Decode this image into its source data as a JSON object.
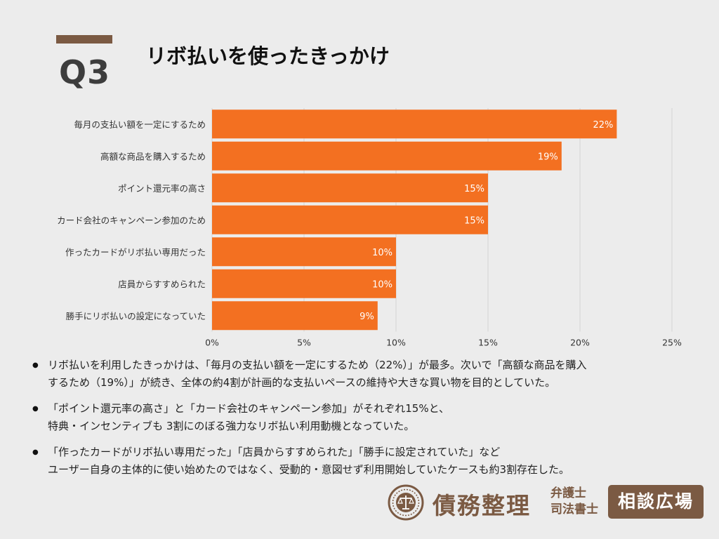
{
  "header": {
    "question": "Q3",
    "title": "リボ払いを使ったきっかけ"
  },
  "colors": {
    "bar": "#f37021",
    "accent_brown": "#7b5a43",
    "background": "#ececec",
    "grid": "#d4d4d4"
  },
  "chart_data": {
    "type": "bar",
    "orientation": "horizontal",
    "categories": [
      "毎月の支払い額を一定にするため",
      "高額な商品を購入するため",
      "ポイント還元率の高さ",
      "カード会社のキャンペーン参加のため",
      "作ったカードがリボ払い専用だった",
      "店員からすすめられた",
      "勝手にリボ払いの設定になっていた"
    ],
    "values": [
      22,
      19,
      15,
      15,
      10,
      10,
      9
    ],
    "value_labels": [
      "22%",
      "19%",
      "15%",
      "15%",
      "10%",
      "10%",
      "9%"
    ],
    "xlim": [
      0,
      25
    ],
    "x_ticks": [
      0,
      5,
      10,
      15,
      20,
      25
    ],
    "x_tick_labels": [
      "0%",
      "5%",
      "10%",
      "15%",
      "20%",
      "25%"
    ],
    "grid": true,
    "legend": "none"
  },
  "bullets": [
    [
      "リボ払いを利用したきっかけは、「毎月の支払い額を一定にするため（22%）」が最多。次いで「高額な商品を購入",
      "するため（19%）」が続き、全体の約4割が計画的な支払いペースの維持や大きな買い物を目的としていた。"
    ],
    [
      "「ポイント還元率の高さ」と「カード会社のキャンペーン参加」がそれぞれ15%と、",
      "特典・インセンティブも 3割にのぼる強力なリボ払い利用動機となっていた。"
    ],
    [
      "「作ったカードがリボ払い専用だった」「店員からすすめられた」「勝手に設定されていた」など",
      "ユーザー自身の主体的に使い始めたのではなく、受動的・意図せず利用開始していたケースも約3割存在した。"
    ]
  ],
  "logo": {
    "main": "債務整理",
    "sub_line1": "弁護士",
    "sub_line2": "司法書士",
    "box": "相談広場",
    "icon": "scales-of-justice-seal-icon"
  }
}
